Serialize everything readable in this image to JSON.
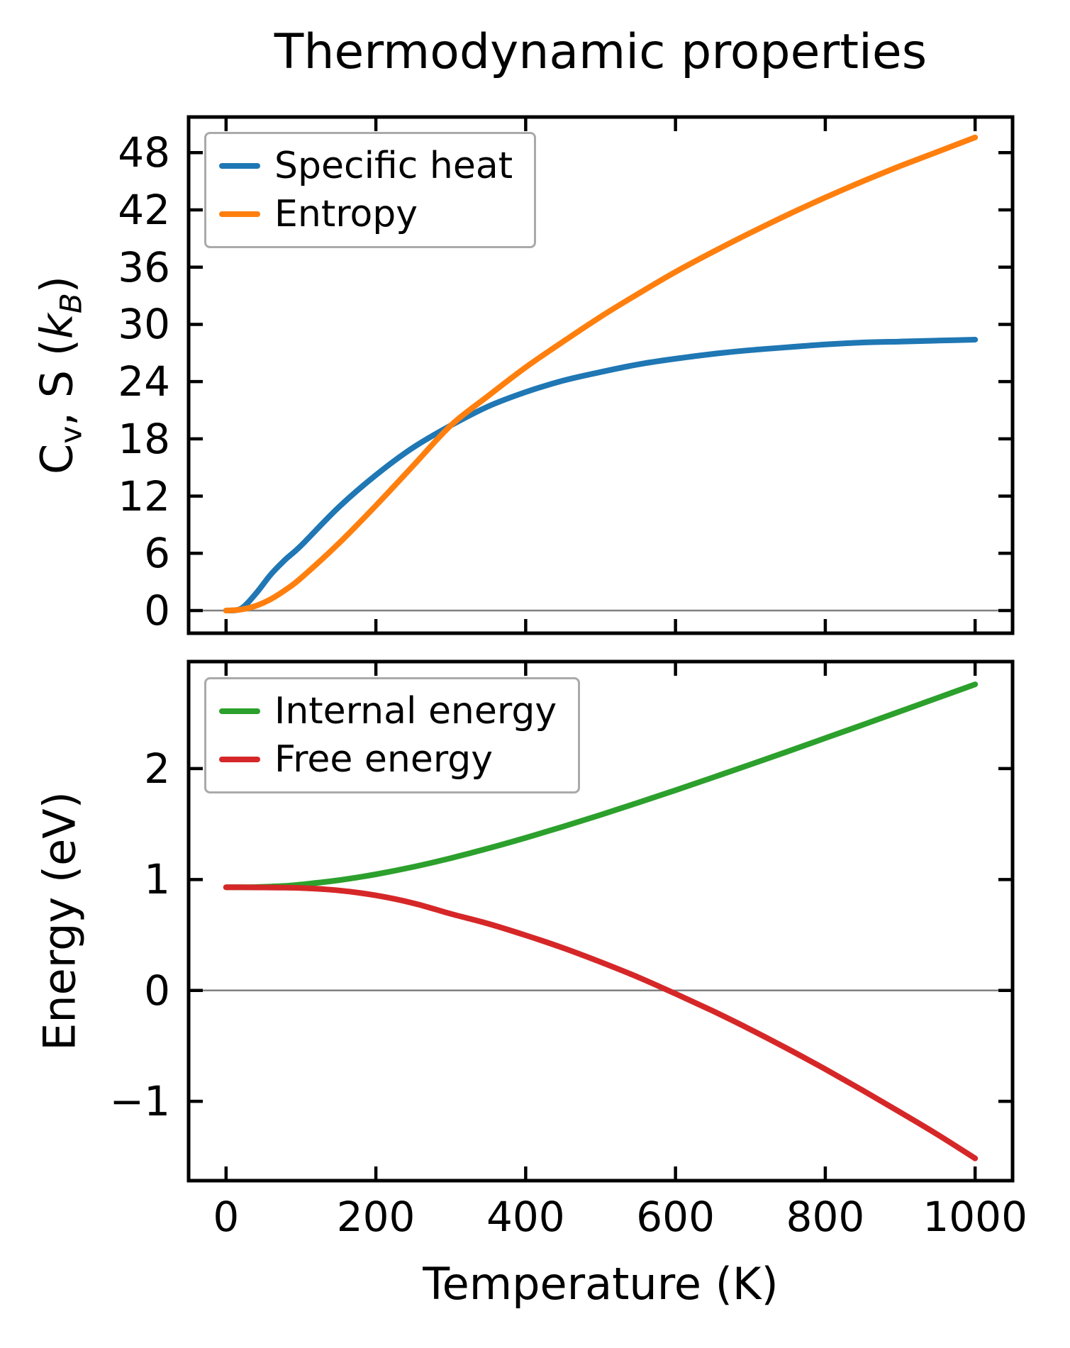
{
  "figure": {
    "title": "Thermodynamic properties",
    "background": "#ffffff",
    "spine_color": "#000000",
    "zero_line_color": "#808080",
    "legend_border_color": "#aaaaaa"
  },
  "chart_data": [
    {
      "type": "line",
      "panel": "top",
      "title": "Thermodynamic properties",
      "xlabel": "Temperature (K)",
      "ylabel": "Cv, S (kB)",
      "ylabel_parts": [
        {
          "t": "C",
          "s": "n"
        },
        {
          "t": "v",
          "s": "sub"
        },
        {
          "t": ", S (",
          "s": "n"
        },
        {
          "t": "k",
          "s": "i"
        },
        {
          "t": "B",
          "s": "subi"
        },
        {
          "t": ")",
          "s": "n"
        }
      ],
      "x": [
        0,
        20,
        40,
        60,
        80,
        100,
        150,
        200,
        250,
        300,
        350,
        400,
        450,
        500,
        550,
        600,
        650,
        700,
        750,
        800,
        850,
        900,
        950,
        1000
      ],
      "series": [
        {
          "name": "Specific heat",
          "color": "#1f77b4",
          "values": [
            0,
            0.2,
            1.8,
            3.8,
            5.4,
            6.8,
            10.8,
            14.2,
            17.1,
            19.4,
            21.4,
            22.9,
            24.1,
            25.0,
            25.8,
            26.4,
            26.9,
            27.3,
            27.6,
            27.9,
            28.1,
            28.2,
            28.3,
            28.4
          ]
        },
        {
          "name": "Entropy",
          "color": "#ff7f0e",
          "values": [
            0,
            0.1,
            0.5,
            1.2,
            2.2,
            3.4,
            7.0,
            11.0,
            15.2,
            19.4,
            22.5,
            25.5,
            28.2,
            30.8,
            33.2,
            35.5,
            37.6,
            39.6,
            41.5,
            43.3,
            45.0,
            46.6,
            48.1,
            49.6
          ]
        }
      ],
      "xlim": [
        -50,
        1050
      ],
      "ylim": [
        -2.38,
        51.74
      ],
      "xticks": [
        0,
        200,
        400,
        600,
        800,
        1000
      ],
      "yticks": [
        0,
        6,
        12,
        18,
        24,
        30,
        36,
        42,
        48
      ],
      "show_xtick_labels": false,
      "zero_line": true,
      "grid": false,
      "legend_position": "upper left"
    },
    {
      "type": "line",
      "panel": "bottom",
      "title": "",
      "xlabel": "Temperature (K)",
      "ylabel": "Energy (eV)",
      "ylabel_parts": [
        {
          "t": "Energy (eV)",
          "s": "n"
        }
      ],
      "x": [
        0,
        20,
        40,
        60,
        80,
        100,
        150,
        200,
        250,
        300,
        350,
        400,
        450,
        500,
        550,
        600,
        650,
        700,
        750,
        800,
        850,
        900,
        950,
        1000
      ],
      "series": [
        {
          "name": "Internal energy",
          "color": "#2ca02c",
          "values": [
            0.93,
            0.93,
            0.932,
            0.937,
            0.943,
            0.955,
            0.993,
            1.047,
            1.114,
            1.193,
            1.281,
            1.376,
            1.477,
            1.583,
            1.693,
            1.805,
            1.92,
            2.037,
            2.155,
            2.275,
            2.395,
            2.516,
            2.638,
            2.76
          ]
        },
        {
          "name": "Free energy",
          "color": "#d62728",
          "values": [
            0.93,
            0.93,
            0.929,
            0.928,
            0.927,
            0.924,
            0.902,
            0.857,
            0.787,
            0.691,
            0.602,
            0.497,
            0.383,
            0.256,
            0.12,
            -0.03,
            -0.186,
            -0.352,
            -0.527,
            -0.71,
            -0.901,
            -1.098,
            -1.3,
            -1.514
          ]
        }
      ],
      "xlim": [
        -50,
        1050
      ],
      "ylim": [
        -1.715,
        2.965
      ],
      "xticks": [
        0,
        200,
        400,
        600,
        800,
        1000
      ],
      "yticks": [
        -1,
        0,
        1,
        2
      ],
      "show_xtick_labels": true,
      "zero_line": true,
      "grid": false,
      "legend_position": "upper left"
    }
  ]
}
